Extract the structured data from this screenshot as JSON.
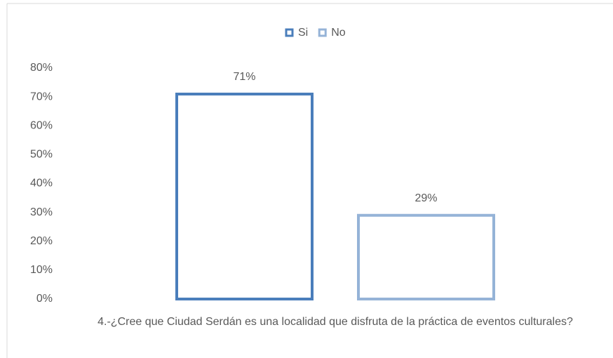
{
  "chart_data": {
    "type": "bar",
    "categories": [
      "4.-¿Cree que Ciudad Serdán es una localidad que disfruta de la práctica de eventos culturales?"
    ],
    "series": [
      {
        "name": "Si",
        "color": "#4a7ebb",
        "values": [
          71
        ],
        "value_labels": [
          "71%"
        ]
      },
      {
        "name": "No",
        "color": "#95b3d7",
        "values": [
          29
        ],
        "value_labels": [
          "29%"
        ]
      }
    ],
    "ylim": [
      0,
      80
    ],
    "yticks": [
      {
        "value": 0,
        "label": "0%"
      },
      {
        "value": 10,
        "label": "10%"
      },
      {
        "value": 20,
        "label": "20%"
      },
      {
        "value": 30,
        "label": "30%"
      },
      {
        "value": 40,
        "label": "40%"
      },
      {
        "value": 50,
        "label": "50%"
      },
      {
        "value": 60,
        "label": "60%"
      },
      {
        "value": 70,
        "label": "70%"
      },
      {
        "value": 80,
        "label": "80%"
      }
    ],
    "grid": false,
    "legend": "top"
  }
}
